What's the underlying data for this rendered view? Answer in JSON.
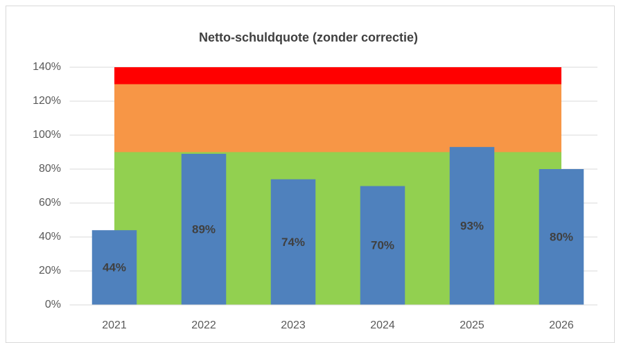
{
  "chart_data": {
    "type": "bar",
    "title": "Netto-schuldquote (zonder correctie)",
    "categories": [
      "2021",
      "2022",
      "2023",
      "2024",
      "2025",
      "2026"
    ],
    "series": [
      {
        "color": "#4f81bd",
        "values": [
          44,
          89,
          74,
          70,
          93,
          80
        ],
        "value_labels": [
          "44%",
          "89%",
          "74%",
          "70%",
          "93%",
          "80%"
        ]
      }
    ],
    "areas": [
      {
        "color": "#92d050",
        "values": [
          90,
          90,
          90,
          90,
          90,
          90
        ]
      },
      {
        "color": "#f79646",
        "values": [
          40,
          40,
          40,
          40,
          40,
          40
        ]
      },
      {
        "color": "#ff0000",
        "values": [
          10,
          10,
          10,
          10,
          10,
          10
        ]
      }
    ],
    "stacked_areas": true,
    "ylim": [
      0,
      140
    ],
    "yticks": [
      {
        "value": 0,
        "label": "0%"
      },
      {
        "value": 20,
        "label": "20%"
      },
      {
        "value": 40,
        "label": "40%"
      },
      {
        "value": 60,
        "label": "60%"
      },
      {
        "value": 80,
        "label": "80%"
      },
      {
        "value": 100,
        "label": "100%"
      },
      {
        "value": 120,
        "label": "120%"
      },
      {
        "value": 140,
        "label": "140%"
      }
    ],
    "grid": true
  }
}
